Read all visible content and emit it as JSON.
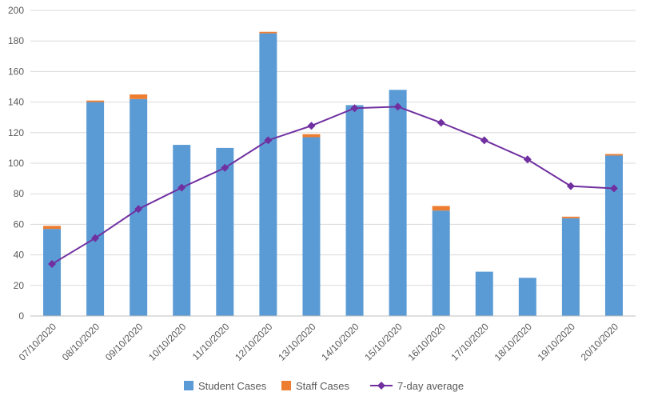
{
  "chart_data": {
    "type": "bar",
    "stacked": true,
    "title": "",
    "xlabel": "",
    "ylabel": "",
    "ylim": [
      0,
      200
    ],
    "yticks": [
      0,
      20,
      40,
      60,
      80,
      100,
      120,
      140,
      160,
      180,
      200
    ],
    "grid": true,
    "legend_position": "bottom",
    "categories": [
      "07/10/2020",
      "08/10/2020",
      "09/10/2020",
      "10/10/2020",
      "11/10/2020",
      "12/10/2020",
      "13/10/2020",
      "14/10/2020",
      "15/10/2020",
      "16/10/2020",
      "17/10/2020",
      "18/10/2020",
      "19/10/2020",
      "20/10/2020"
    ],
    "series": [
      {
        "name": "Student Cases",
        "type": "bar",
        "color": "#5b9bd5",
        "values": [
          57,
          140,
          142,
          112,
          110,
          185,
          117,
          138,
          148,
          69,
          29,
          25,
          64,
          105
        ]
      },
      {
        "name": "Staff Cases",
        "type": "bar",
        "color": "#ed7d31",
        "values": [
          2,
          1,
          3,
          0,
          0,
          1,
          2,
          0,
          0,
          3,
          0,
          0,
          1,
          1
        ]
      },
      {
        "name": "7-day average",
        "type": "line",
        "marker": "diamond",
        "color": "#7030a0",
        "values": [
          34,
          51,
          70,
          84,
          97,
          115,
          124.5,
          136,
          137,
          126.5,
          115,
          102.5,
          85,
          83.5
        ]
      }
    ]
  }
}
